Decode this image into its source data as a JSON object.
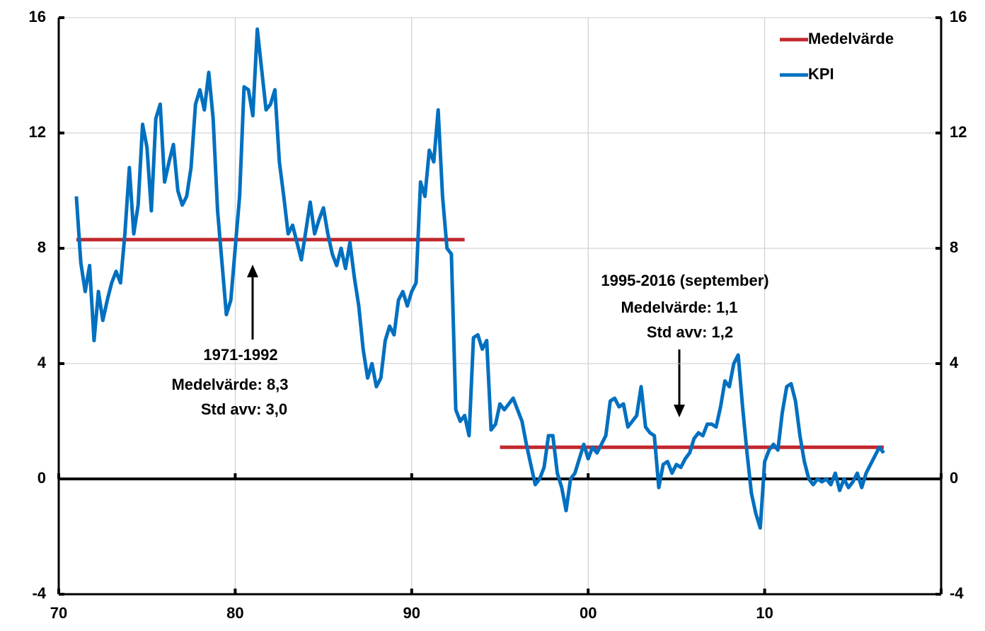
{
  "chart_data": {
    "type": "line",
    "xlim": [
      1970,
      2020
    ],
    "xticks": [
      {
        "value": 1970,
        "label": "70"
      },
      {
        "value": 1980,
        "label": "80"
      },
      {
        "value": 1990,
        "label": "90"
      },
      {
        "value": 2000,
        "label": "00"
      },
      {
        "value": 2010,
        "label": "10"
      },
      {
        "value": 2020,
        "label": ""
      }
    ],
    "ylim": [
      -4,
      16
    ],
    "yticks": [
      -4,
      0,
      4,
      8,
      12,
      16
    ],
    "y2lim": [
      -4,
      16
    ],
    "y2ticks": [
      -4,
      0,
      4,
      8,
      12,
      16
    ],
    "grid": true,
    "legend": "top-right",
    "annotations": [
      "1971-1992",
      "Medelvärde: 8,3",
      "Std avv: 3,0",
      "1995-2016 (september)",
      "Medelvärde: 1,1",
      "Std avv: 1,2"
    ],
    "series": [
      {
        "name": "Medelvärde",
        "color": "#c0282d",
        "x": [
          1971,
          1993,
          1994,
          1995,
          2016.75
        ],
        "values": [
          8.3,
          8.3,
          null,
          1.1,
          1.1
        ]
      },
      {
        "name": "KPI",
        "color": "#0070c0",
        "x": [
          1971,
          1971.25,
          1971.5,
          1971.75,
          1972,
          1972.25,
          1972.5,
          1972.75,
          1973,
          1973.25,
          1973.5,
          1973.75,
          1974,
          1974.25,
          1974.5,
          1974.75,
          1975,
          1975.25,
          1975.5,
          1975.75,
          1976,
          1976.25,
          1976.5,
          1976.75,
          1977,
          1977.25,
          1977.5,
          1977.75,
          1978,
          1978.25,
          1978.5,
          1978.75,
          1979,
          1979.25,
          1979.5,
          1979.75,
          1980,
          1980.25,
          1980.5,
          1980.75,
          1981,
          1981.25,
          1981.5,
          1981.75,
          1982,
          1982.25,
          1982.5,
          1982.75,
          1983,
          1983.25,
          1983.5,
          1983.75,
          1984,
          1984.25,
          1984.5,
          1984.75,
          1985,
          1985.25,
          1985.5,
          1985.75,
          1986,
          1986.25,
          1986.5,
          1986.75,
          1987,
          1987.25,
          1987.5,
          1987.75,
          1988,
          1988.25,
          1988.5,
          1988.75,
          1989,
          1989.25,
          1989.5,
          1989.75,
          1990,
          1990.25,
          1990.5,
          1990.75,
          1991,
          1991.25,
          1991.5,
          1991.75,
          1992,
          1992.25,
          1992.5,
          1992.75,
          1993,
          1993.25,
          1993.5,
          1993.75,
          1994,
          1994.25,
          1994.5,
          1994.75,
          1995,
          1995.25,
          1995.5,
          1995.75,
          1996,
          1996.25,
          1996.5,
          1996.75,
          1997,
          1997.25,
          1997.5,
          1997.75,
          1998,
          1998.25,
          1998.5,
          1998.75,
          1999,
          1999.25,
          1999.5,
          1999.75,
          2000,
          2000.25,
          2000.5,
          2000.75,
          2001,
          2001.25,
          2001.5,
          2001.75,
          2002,
          2002.25,
          2002.5,
          2002.75,
          2003,
          2003.25,
          2003.5,
          2003.75,
          2004,
          2004.25,
          2004.5,
          2004.75,
          2005,
          2005.25,
          2005.5,
          2005.75,
          2006,
          2006.25,
          2006.5,
          2006.75,
          2007,
          2007.25,
          2007.5,
          2007.75,
          2008,
          2008.25,
          2008.5,
          2008.75,
          2009,
          2009.25,
          2009.5,
          2009.75,
          2010,
          2010.25,
          2010.5,
          2010.75,
          2011,
          2011.25,
          2011.5,
          2011.75,
          2012,
          2012.25,
          2012.5,
          2012.75,
          2013,
          2013.25,
          2013.5,
          2013.75,
          2014,
          2014.25,
          2014.5,
          2014.75,
          2015,
          2015.25,
          2015.5,
          2015.75,
          2016,
          2016.25,
          2016.5,
          2016.75
        ],
        "values": [
          9.8,
          7.5,
          6.5,
          7.4,
          4.8,
          6.5,
          5.5,
          6.2,
          6.8,
          7.2,
          6.8,
          8.5,
          10.8,
          8.5,
          9.5,
          12.3,
          11.5,
          9.3,
          12.5,
          13.0,
          10.3,
          11.0,
          11.6,
          10.0,
          9.5,
          9.8,
          10.8,
          13.0,
          13.5,
          12.8,
          14.1,
          12.5,
          9.3,
          7.5,
          5.7,
          6.2,
          8.0,
          9.8,
          13.6,
          13.5,
          12.6,
          15.6,
          14.2,
          12.8,
          13.0,
          13.5,
          11.0,
          9.8,
          8.5,
          8.8,
          8.2,
          7.6,
          8.6,
          9.6,
          8.5,
          9.0,
          9.4,
          8.5,
          7.8,
          7.4,
          8.0,
          7.3,
          8.2,
          7.0,
          6.0,
          4.5,
          3.5,
          4.0,
          3.2,
          3.5,
          4.8,
          5.3,
          5.0,
          6.2,
          6.5,
          6.0,
          6.5,
          6.8,
          10.3,
          9.8,
          11.4,
          11.0,
          12.8,
          9.8,
          8.0,
          7.8,
          2.4,
          2.0,
          2.2,
          1.5,
          4.9,
          5.0,
          4.5,
          4.8,
          1.7,
          1.9,
          2.6,
          2.4,
          2.6,
          2.8,
          2.4,
          2.0,
          1.2,
          0.5,
          -0.2,
          0.0,
          0.4,
          1.5,
          1.5,
          0.2,
          -0.3,
          -1.1,
          0.0,
          0.2,
          0.7,
          1.2,
          0.7,
          1.1,
          0.9,
          1.2,
          1.5,
          2.7,
          2.8,
          2.5,
          2.6,
          1.8,
          2.0,
          2.2,
          3.2,
          1.8,
          1.6,
          1.5,
          -0.3,
          0.5,
          0.6,
          0.2,
          0.5,
          0.4,
          0.7,
          0.9,
          1.4,
          1.6,
          1.5,
          1.9,
          1.9,
          1.8,
          2.5,
          3.4,
          3.2,
          4.0,
          4.3,
          2.5,
          0.9,
          -0.5,
          -1.2,
          -1.7,
          0.6,
          1.0,
          1.2,
          1.0,
          2.3,
          3.2,
          3.3,
          2.7,
          1.5,
          0.6,
          0.0,
          -0.2,
          0.0,
          -0.1,
          0.0,
          -0.2,
          0.2,
          -0.4,
          0.0,
          -0.3,
          -0.1,
          0.2,
          -0.3,
          0.2,
          0.5,
          0.8,
          1.1,
          0.9
        ]
      }
    ]
  }
}
